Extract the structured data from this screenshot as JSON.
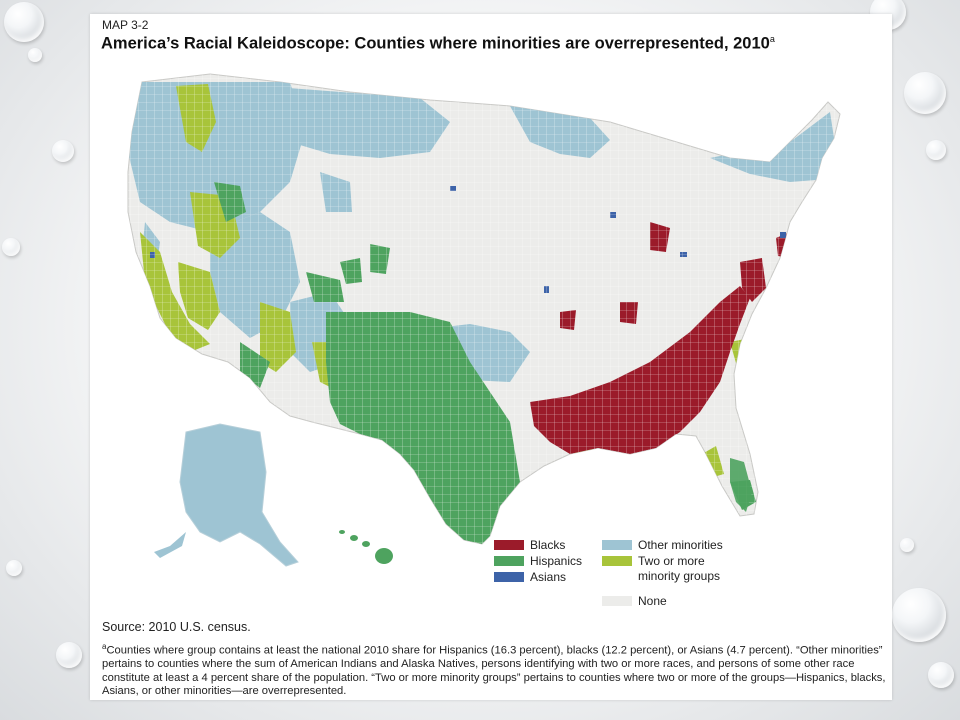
{
  "map": {
    "label": "MAP 3-2",
    "title": "America’s Racial Kaleidoscope: Counties where minorities are overrepresented, 2010",
    "title_footnote_mark": "a"
  },
  "legend": {
    "items": [
      {
        "key": "blacks",
        "label": "Blacks",
        "color": "#9b1b2a"
      },
      {
        "key": "hispanics",
        "label": "Hispanics",
        "color": "#4ea35f"
      },
      {
        "key": "asians",
        "label": "Asians",
        "color": "#3d63a8"
      },
      {
        "key": "other",
        "label": "Other minorities",
        "color": "#9ec4d3"
      },
      {
        "key": "two_or_more",
        "label": "Two or more minority groups",
        "color": "#a8c43a"
      },
      {
        "key": "none",
        "label": "None",
        "color": "#ececea"
      }
    ]
  },
  "source": "Source: 2010 U.S. census.",
  "footnote": {
    "mark": "a",
    "text": "Counties where group contains at least the national 2010 share for Hispanics (16.3 percent), blacks (12.2 percent), or Asians (4.7 percent). “Other minorities” pertains to counties where the sum of American Indians and Alaska Natives, persons identifying with two or more races, and persons of some other race constitute at least a 4 percent share of the population. “Two or more minority groups” pertains to counties where two or more of the groups—Hispanics, blacks, Asians, or other minorities—are overrepresented."
  }
}
